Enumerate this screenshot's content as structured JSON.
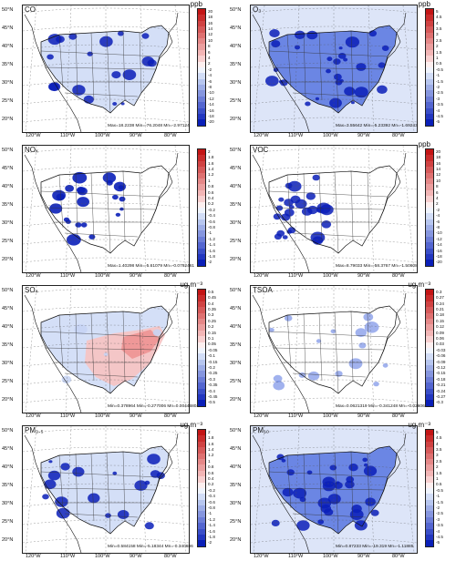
{
  "colors": {
    "blue_dark": "#0a1fb8",
    "blue_mid": "#4466dd",
    "blue_light": "#c6d4f4",
    "white": "#ffffff",
    "red_light": "#f6c4c4",
    "red_dark": "#c31515"
  },
  "lat_labels": [
    "50°N",
    "45°N",
    "40°N",
    "35°N",
    "30°N",
    "25°N",
    "20°N"
  ],
  "lon_labels": [
    "120°W",
    "110°W",
    "100°W",
    "90°W",
    "80°W"
  ],
  "panels": [
    {
      "title": "CO",
      "unit": "ppb",
      "stats": "Max=18.2238 Min=-76.2048 Mn=-2.97124",
      "colorbar_ticks": [
        "20",
        "18",
        "16",
        "14",
        "12",
        "10",
        "8",
        "6",
        "4",
        "2",
        "-2",
        "-4",
        "-6",
        "-8",
        "-10",
        "-12",
        "-14",
        "-16",
        "-18",
        "-20"
      ],
      "pattern": "blue_dominant"
    },
    {
      "title": "O₃",
      "unit": "ppb",
      "stats": "Max=3.55642 Min=-5.23392 Mn=-1.69243",
      "colorbar_ticks": [
        "5",
        "4.5",
        "4",
        "3.5",
        "3",
        "2.5",
        "2",
        "1.5",
        "1",
        "0.5",
        "-0.5",
        "-1",
        "-1.5",
        "-2",
        "-2.5",
        "-3",
        "-3.5",
        "-4",
        "-4.5",
        "-5"
      ],
      "pattern": "blue_heavy"
    },
    {
      "title": "NOₓ",
      "unit": "",
      "stats": "Max=1.40298 Min=-5.61079 Mn=-0.0792461",
      "colorbar_ticks": [
        "2",
        "1.8",
        "1.6",
        "1.4",
        "1.2",
        "1",
        "0.8",
        "0.6",
        "0.4",
        "0.2",
        "-0.2",
        "-0.4",
        "-0.6",
        "-0.8",
        "-1",
        "-1.2",
        "-1.4",
        "-1.6",
        "-1.8",
        "-2"
      ],
      "pattern": "sparse_blue"
    },
    {
      "title": "VOC",
      "unit": "ppb",
      "stats": "Max=8.79033 Min=-58.3767 Mn=-1.50608",
      "colorbar_ticks": [
        "20",
        "18",
        "16",
        "14",
        "12",
        "10",
        "8",
        "6",
        "4",
        "2",
        "-2",
        "-4",
        "-6",
        "-8",
        "-10",
        "-12",
        "-14",
        "-16",
        "-18",
        "-20"
      ],
      "pattern": "blue_west"
    },
    {
      "title": "SO₄",
      "unit": "ug m⁻³",
      "stats": "Min=0.378964 Min=-0.277006 Mn=0.00446804",
      "colorbar_ticks": [
        "0.5",
        "0.45",
        "0.4",
        "0.35",
        "0.3",
        "0.25",
        "0.2",
        "0.15",
        "0.1",
        "0.05",
        "-0.05",
        "-0.1",
        "-0.15",
        "-0.2",
        "-0.25",
        "-0.3",
        "-0.35",
        "-0.4",
        "-0.45",
        "-0.5"
      ],
      "pattern": "red_east"
    },
    {
      "title": "TSOA",
      "unit": "ug m⁻³",
      "stats": "Max=0.0621319 Min=-0.341248 Mn=-0.026064",
      "colorbar_ticks": [
        "0.3",
        "0.27",
        "0.24",
        "0.21",
        "0.18",
        "0.15",
        "0.12",
        "0.09",
        "0.06",
        "0.03",
        "-0.03",
        "-0.06",
        "-0.09",
        "-0.12",
        "-0.15",
        "-0.18",
        "-0.21",
        "-0.24",
        "-0.27",
        "-0.3"
      ],
      "pattern": "light_blue"
    },
    {
      "title": "PM₂.₅",
      "unit": "ug m⁻³",
      "stats": "Min=0.584158 Min=-5.18344 Mn=-0.340686",
      "colorbar_ticks": [
        "2",
        "1.8",
        "1.6",
        "1.4",
        "1.2",
        "1",
        "0.8",
        "0.6",
        "0.4",
        "0.2",
        "-0.2",
        "-0.4",
        "-0.6",
        "-0.8",
        "-1",
        "-1.2",
        "-1.4",
        "-1.6",
        "-1.8",
        "-2"
      ],
      "pattern": "blue_dominant"
    },
    {
      "title": "PM₁₀",
      "unit": "ug m⁻³",
      "stats": "Min=0.87233 Min=-19.319 Mn=-1.11885",
      "colorbar_ticks": [
        "5",
        "4.5",
        "4",
        "3.5",
        "3",
        "2.5",
        "2",
        "1.5",
        "1",
        "0.5",
        "-0.5",
        "-1",
        "-1.5",
        "-2",
        "-2.5",
        "-3",
        "-3.5",
        "-4",
        "-4.5",
        "-5"
      ],
      "pattern": "blue_heavy"
    }
  ]
}
